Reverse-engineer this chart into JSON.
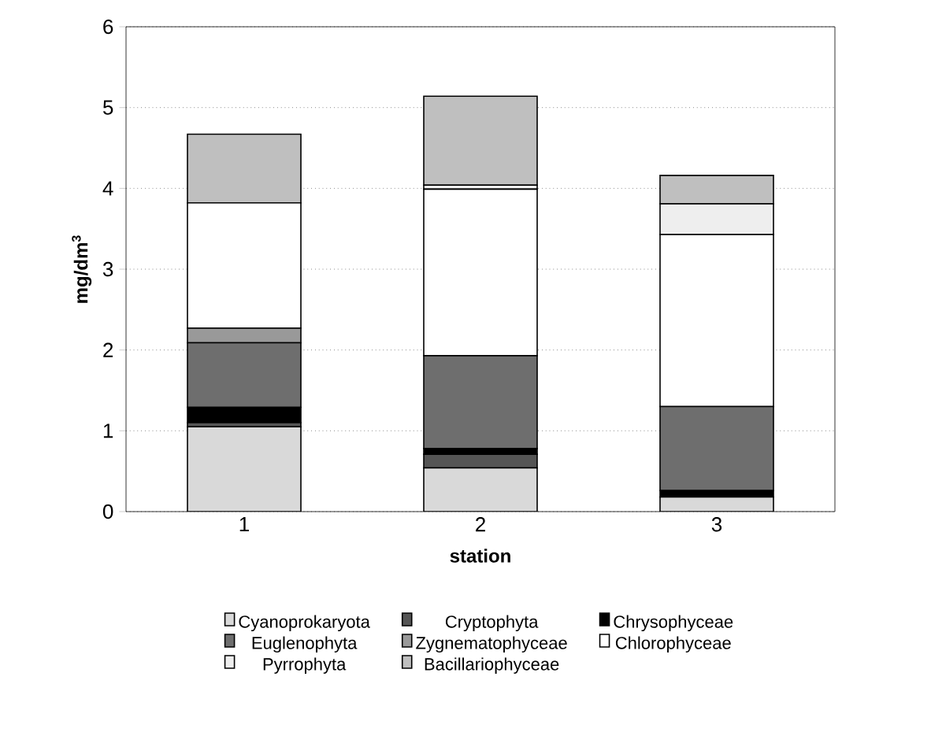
{
  "chart_data": {
    "type": "bar",
    "stacked": true,
    "xlabel": "station",
    "ylabel": "mg/dm$^{3}$",
    "categories": [
      "1",
      "2",
      "3"
    ],
    "ylim": [
      0,
      6
    ],
    "yticks": [
      0,
      1,
      2,
      3,
      4,
      5,
      6
    ],
    "grid": "y",
    "legend": "bottom",
    "series": [
      {
        "name": "Cyanoprokaryota",
        "color": "#d9d9d9",
        "values": [
          1.05,
          0.54,
          0.18
        ]
      },
      {
        "name": "Cryptophyta",
        "color": "#555555",
        "values": [
          0.05,
          0.17,
          0
        ]
      },
      {
        "name": "Chrysophyceae",
        "color": "#000000",
        "values": [
          0.19,
          0.07,
          0.08
        ]
      },
      {
        "name": "Euglenophyta",
        "color": "#6e6e6e",
        "values": [
          0.8,
          1.15,
          1.04
        ]
      },
      {
        "name": "Zygnematophyceae",
        "color": "#999999",
        "values": [
          0.18,
          0,
          0
        ]
      },
      {
        "name": "Chlorophyceae",
        "color": "#ffffff",
        "values": [
          1.55,
          2.06,
          2.13
        ]
      },
      {
        "name": "Pyrrophyta",
        "color": "#eeeeee",
        "values": [
          0,
          0.05,
          0.38
        ]
      },
      {
        "name": "Bacillariophyceae",
        "color": "#bfbfbf",
        "values": [
          0.85,
          1.1,
          0.35
        ]
      }
    ]
  }
}
